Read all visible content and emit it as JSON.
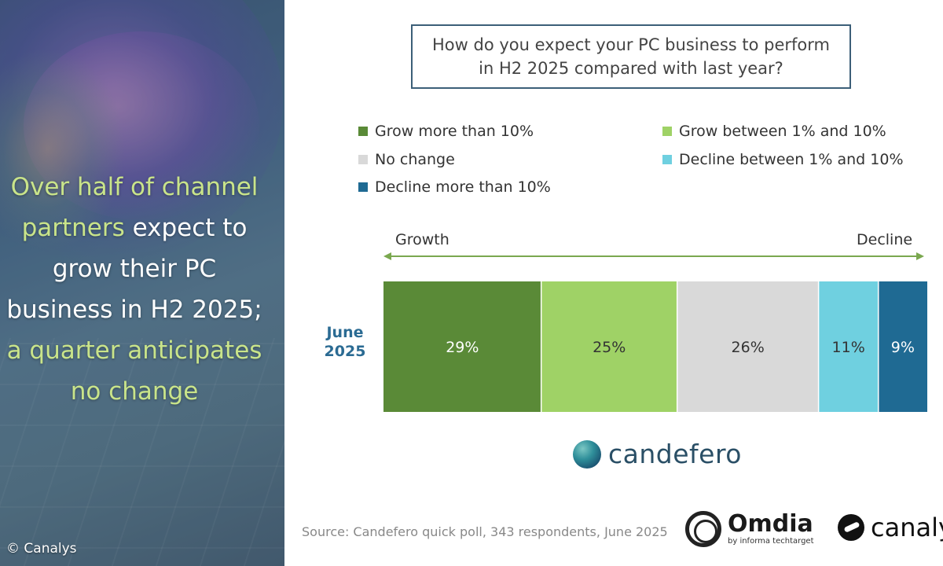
{
  "headline": {
    "line1": "Over half of channel",
    "line2_highlight": "partners",
    "line2_rest": " expect to",
    "line3": "grow their PC",
    "line4": "business in H2 2025;",
    "line5": "a quarter anticipates",
    "line6": "no change"
  },
  "copyright": "© Canalys",
  "question": "How do you expect your PC business to perform in H2 2025 compared with last year?",
  "legend": [
    {
      "label": "Grow more than 10%",
      "color": "#5a8a37"
    },
    {
      "label": "Grow between 1% and 10%",
      "color": "#9fd266"
    },
    {
      "label": "No change",
      "color": "#d9d9d9"
    },
    {
      "label": "Decline between 1% and 10%",
      "color": "#6fd0e0"
    },
    {
      "label": "Decline more than 10%",
      "color": "#1f6a93"
    }
  ],
  "axis": {
    "left": "Growth",
    "right": "Decline"
  },
  "chart_data": {
    "type": "bar",
    "orientation": "horizontal",
    "stacked": true,
    "categories": [
      "June 2025"
    ],
    "category_lines": [
      "June",
      "2025"
    ],
    "series": [
      {
        "name": "Grow more than 10%",
        "values": [
          29
        ],
        "label": "29%",
        "color": "#5a8a37",
        "label_color": "#ffffff"
      },
      {
        "name": "Grow between 1% and 10%",
        "values": [
          25
        ],
        "label": "25%",
        "color": "#9fd266",
        "label_color": "#333333"
      },
      {
        "name": "No change",
        "values": [
          26
        ],
        "label": "26%",
        "color": "#d9d9d9",
        "label_color": "#333333"
      },
      {
        "name": "Decline between 1% and 10%",
        "values": [
          11
        ],
        "label": "11%",
        "color": "#6fd0e0",
        "label_color": "#333333"
      },
      {
        "name": "Decline more than 10%",
        "values": [
          9
        ],
        "label": "9%",
        "color": "#1f6a93",
        "label_color": "#ffffff"
      }
    ],
    "xlim": [
      0,
      100
    ]
  },
  "logos": {
    "candefero": "candefero",
    "omdia": "Omdia",
    "omdia_sub": "by informa techtarget",
    "canalys": "canalys"
  },
  "source": "Source: Candefero quick poll, 343 respondents, June 2025"
}
